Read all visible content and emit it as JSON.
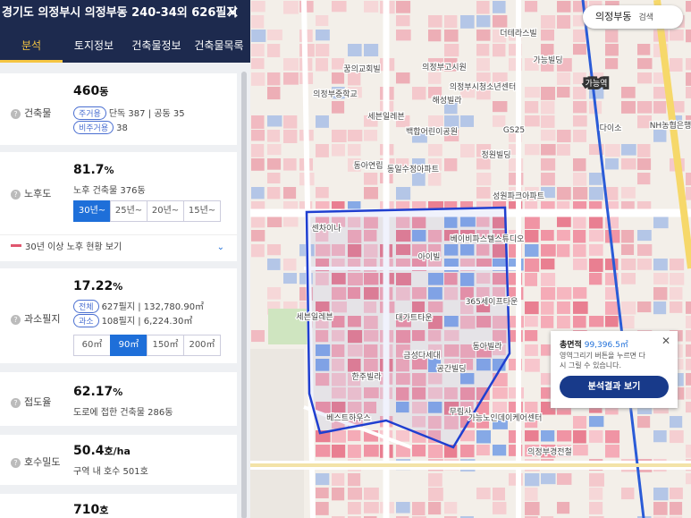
{
  "header": {
    "title": "경기도 의정부시 의정부동 240-34외 626필지"
  },
  "tabs": [
    "분석",
    "토지정보",
    "건축물정보",
    "건축물목록"
  ],
  "cards": {
    "buildings": {
      "label": "건축물",
      "value": "460",
      "unit": "동",
      "tag1": "주거용",
      "detail1a": "단독 387",
      "detail1b": "공동 35",
      "tag2": "비주거용",
      "detail2": "38"
    },
    "aging": {
      "label": "노후도",
      "value": "81.7",
      "unit": "%",
      "sub": "노후 건축물 376동",
      "options": [
        "30년~",
        "25년~",
        "20년~",
        "15년~"
      ],
      "toggle": "30년 이상 노후 현황 보기"
    },
    "small": {
      "label": "과소필지",
      "value": "17.22",
      "unit": "%",
      "tag1": "전체",
      "count1": "627필지",
      "area1": "132,780.90㎡",
      "tag2": "과소",
      "count2": "108필지",
      "area2": "6,224.30㎡",
      "options": [
        "60㎡",
        "90㎡",
        "150㎡",
        "200㎡"
      ]
    },
    "road": {
      "label": "접도율",
      "value": "62.17",
      "unit": "%",
      "sub": "도로에 접한 건축물 286동"
    },
    "density": {
      "label": "호수밀도",
      "value": "50.4",
      "unit": "호/ha",
      "sub": "구역 내 호수 501호"
    },
    "households": {
      "value": "710",
      "unit": "호"
    }
  },
  "map": {
    "search": "의정부동",
    "search_button": "검색",
    "popup": {
      "label": "총면적",
      "value": "99,396.5㎡",
      "message": "영역그리기 버튼을 누르면 다시 그릴 수 있습니다.",
      "button": "분석결과 보기"
    },
    "labels": [
      "더테라스빌",
      "꿈의교회빌",
      "의정부고시원",
      "가능빌딩",
      "의정부시청소년센터",
      "해성빌라",
      "의정부중학교",
      "세븐일레븐",
      "백합어린이공원",
      "GS25",
      "동아연립",
      "동일수정아파트",
      "정원빌딩",
      "성원파크아파트",
      "센차이나",
      "아이빌",
      "베이비파스텔스튜디오",
      "365세이프타운",
      "세븐일레븐",
      "대가트타운",
      "금성다세대",
      "공간빌딩",
      "동아빌라",
      "한주빌라",
      "베스트하우스",
      "무림사",
      "가능노인데이케어센터",
      "가능역",
      "다이소",
      "NH농협은행",
      "의정부경전철"
    ]
  }
}
